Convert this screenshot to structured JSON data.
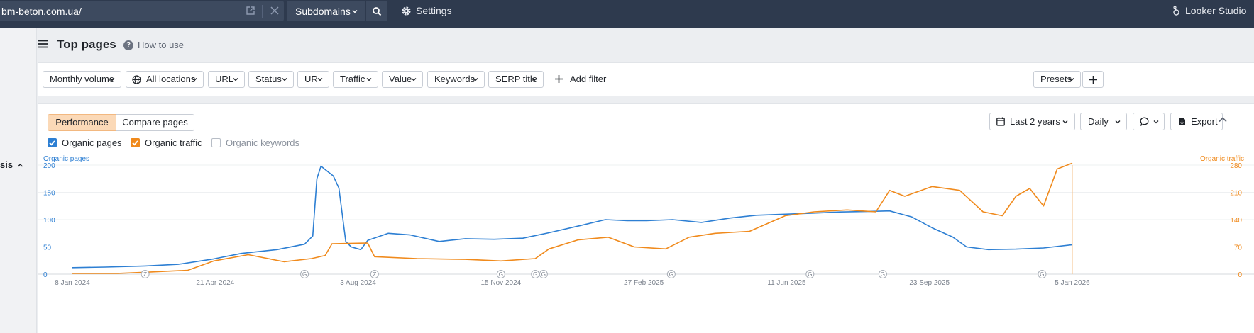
{
  "topbar": {
    "url": "bm-beton.com.ua/",
    "subdomains_label": "Subdomains",
    "settings_label": "Settings",
    "looker_label": "Looker Studio"
  },
  "sidebar": {
    "partial_label": "sis"
  },
  "header": {
    "title": "Top pages",
    "how_to_use": "How to use"
  },
  "filters": [
    {
      "label": "Monthly volume"
    },
    {
      "label": "All locations"
    },
    {
      "label": "URL"
    },
    {
      "label": "Status"
    },
    {
      "label": "UR"
    },
    {
      "label": "Traffic"
    },
    {
      "label": "Value"
    },
    {
      "label": "Keywords"
    },
    {
      "label": "SERP title"
    }
  ],
  "add_filter_label": "Add filter",
  "presets_label": "Presets",
  "chart_panel": {
    "tabs": [
      {
        "label": "Performance",
        "active": true
      },
      {
        "label": "Compare pages",
        "active": false
      }
    ],
    "range_label": "Last 2 years",
    "interval_label": "Daily",
    "export_label": "Export",
    "metrics": [
      {
        "label": "Organic pages",
        "checked": true,
        "color": "#2d7fd3"
      },
      {
        "label": "Organic traffic",
        "checked": true,
        "color": "#f08a1c"
      },
      {
        "label": "Organic keywords",
        "checked": false,
        "color": "#9aa1ab"
      }
    ]
  },
  "chart_data": {
    "type": "line",
    "left_axis_label": "Organic pages",
    "right_axis_label": "Organic traffic",
    "left_ticks": [
      "200",
      "150",
      "100",
      "50",
      "0"
    ],
    "right_ticks": [
      "280",
      "210",
      "140",
      "70",
      "0"
    ],
    "y_left_range": [
      0,
      200
    ],
    "y_right_range": [
      0,
      280
    ],
    "x_labels": [
      "8 Jan 2024",
      "21 Apr 2024",
      "3 Aug 2024",
      "15 Nov 2024",
      "27 Feb 2025",
      "11 Jun 2025",
      "23 Sep 2025",
      "5 Jan 2026"
    ],
    "x_range": [
      "2024-01-08",
      "2026-01-05"
    ],
    "grid": true,
    "annotation_markers": [
      {
        "date": "2024-03-01",
        "label": "Z"
      },
      {
        "date": "2024-06-25",
        "label": "G"
      },
      {
        "date": "2024-08-15",
        "label": "Z"
      },
      {
        "date": "2024-11-15",
        "label": "G"
      },
      {
        "date": "2024-12-10",
        "label": "G"
      },
      {
        "date": "2024-12-16",
        "label": "G"
      },
      {
        "date": "2025-03-19",
        "label": "G"
      },
      {
        "date": "2025-06-28",
        "label": "G"
      },
      {
        "date": "2025-08-20",
        "label": "G"
      },
      {
        "date": "2025-12-14",
        "label": "G"
      }
    ],
    "series": [
      {
        "name": "Organic pages",
        "axis": "left",
        "color": "#2d7fd3",
        "points": [
          [
            "2024-01-08",
            12
          ],
          [
            "2024-02-01",
            13
          ],
          [
            "2024-03-01",
            15
          ],
          [
            "2024-03-25",
            18
          ],
          [
            "2024-04-20",
            28
          ],
          [
            "2024-05-10",
            38
          ],
          [
            "2024-06-05",
            45
          ],
          [
            "2024-06-25",
            55
          ],
          [
            "2024-07-01",
            70
          ],
          [
            "2024-07-04",
            175
          ],
          [
            "2024-07-07",
            198
          ],
          [
            "2024-07-10",
            192
          ],
          [
            "2024-07-16",
            180
          ],
          [
            "2024-07-20",
            158
          ],
          [
            "2024-07-25",
            60
          ],
          [
            "2024-07-29",
            50
          ],
          [
            "2024-08-05",
            45
          ],
          [
            "2024-08-10",
            62
          ],
          [
            "2024-08-25",
            75
          ],
          [
            "2024-09-10",
            72
          ],
          [
            "2024-10-01",
            60
          ],
          [
            "2024-10-20",
            65
          ],
          [
            "2024-11-10",
            64
          ],
          [
            "2024-12-01",
            66
          ],
          [
            "2024-12-20",
            76
          ],
          [
            "2025-01-10",
            88
          ],
          [
            "2025-01-30",
            100
          ],
          [
            "2025-02-15",
            98
          ],
          [
            "2025-03-01",
            98
          ],
          [
            "2025-03-20",
            100
          ],
          [
            "2025-04-10",
            95
          ],
          [
            "2025-05-01",
            103
          ],
          [
            "2025-05-20",
            108
          ],
          [
            "2025-06-10",
            110
          ],
          [
            "2025-07-01",
            112
          ],
          [
            "2025-07-20",
            114
          ],
          [
            "2025-08-10",
            115
          ],
          [
            "2025-08-25",
            116
          ],
          [
            "2025-09-10",
            105
          ],
          [
            "2025-09-25",
            85
          ],
          [
            "2025-10-10",
            68
          ],
          [
            "2025-10-20",
            50
          ],
          [
            "2025-11-05",
            45
          ],
          [
            "2025-11-25",
            46
          ],
          [
            "2025-12-15",
            48
          ],
          [
            "2026-01-05",
            54
          ]
        ]
      },
      {
        "name": "Organic traffic",
        "axis": "right",
        "color": "#f08a1c",
        "points": [
          [
            "2024-01-08",
            2
          ],
          [
            "2024-02-10",
            2
          ],
          [
            "2024-03-01",
            5
          ],
          [
            "2024-04-01",
            10
          ],
          [
            "2024-04-20",
            34
          ],
          [
            "2024-05-15",
            50
          ],
          [
            "2024-06-10",
            32
          ],
          [
            "2024-06-30",
            40
          ],
          [
            "2024-07-10",
            48
          ],
          [
            "2024-07-15",
            78
          ],
          [
            "2024-08-10",
            80
          ],
          [
            "2024-08-15",
            45
          ],
          [
            "2024-09-15",
            40
          ],
          [
            "2024-10-20",
            38
          ],
          [
            "2024-11-15",
            34
          ],
          [
            "2024-12-10",
            40
          ],
          [
            "2024-12-20",
            65
          ],
          [
            "2025-01-10",
            88
          ],
          [
            "2025-02-01",
            95
          ],
          [
            "2025-02-20",
            70
          ],
          [
            "2025-03-15",
            65
          ],
          [
            "2025-04-01",
            95
          ],
          [
            "2025-04-20",
            105
          ],
          [
            "2025-05-15",
            110
          ],
          [
            "2025-06-10",
            150
          ],
          [
            "2025-07-01",
            160
          ],
          [
            "2025-07-25",
            165
          ],
          [
            "2025-08-15",
            160
          ],
          [
            "2025-08-25",
            215
          ],
          [
            "2025-09-05",
            200
          ],
          [
            "2025-09-25",
            225
          ],
          [
            "2025-10-15",
            215
          ],
          [
            "2025-11-01",
            160
          ],
          [
            "2025-11-15",
            150
          ],
          [
            "2025-11-25",
            200
          ],
          [
            "2025-12-05",
            220
          ],
          [
            "2025-12-15",
            175
          ],
          [
            "2025-12-25",
            270
          ],
          [
            "2026-01-05",
            285
          ]
        ]
      }
    ]
  }
}
